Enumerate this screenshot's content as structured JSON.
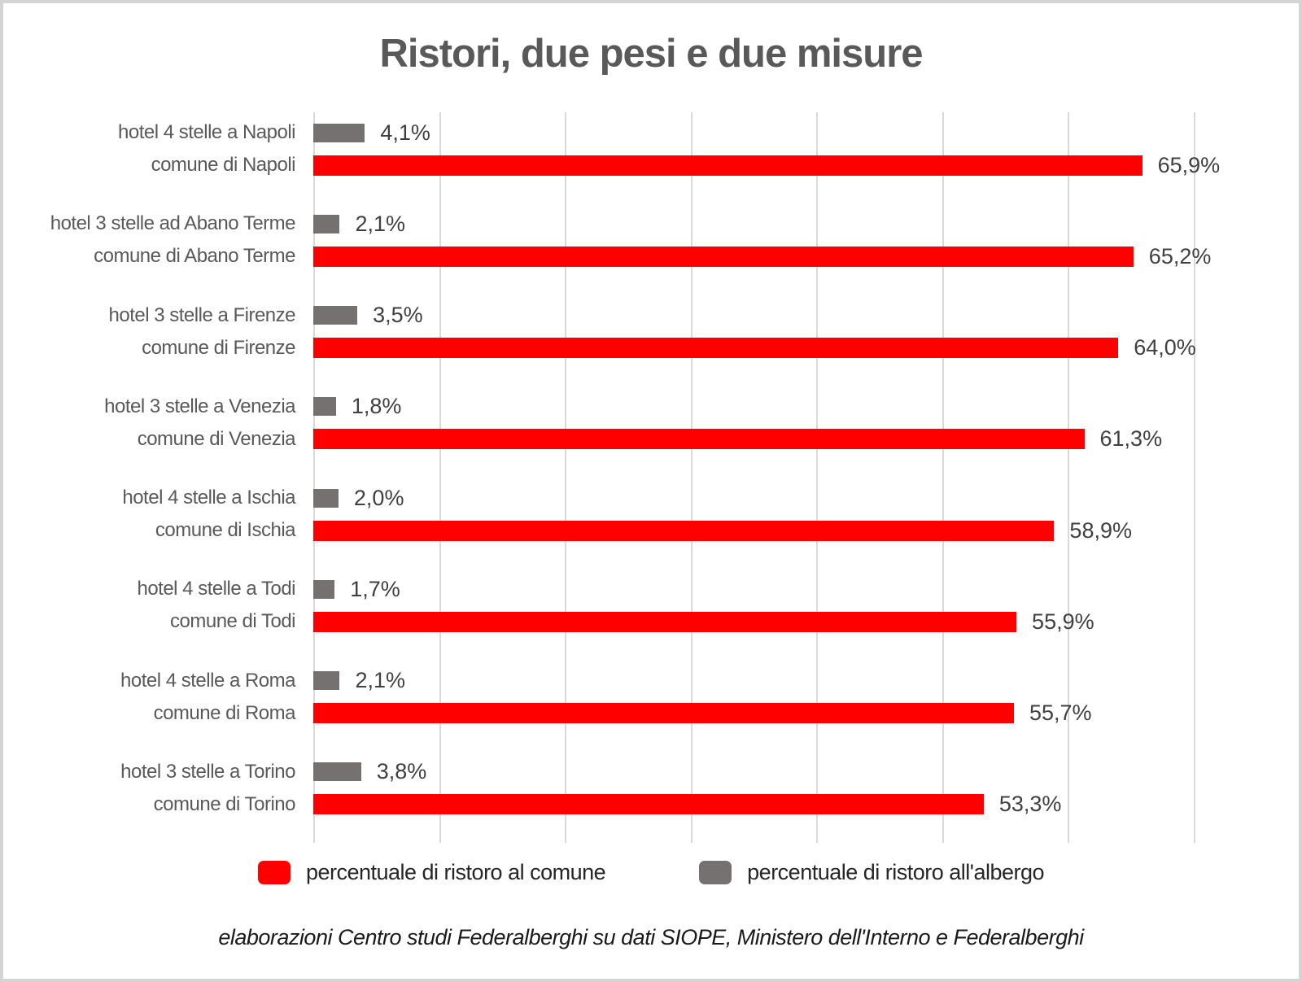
{
  "chart_data": {
    "type": "bar",
    "orientation": "horizontal",
    "title": "Ristori, due pesi e due misure",
    "xlim": [
      0,
      70
    ],
    "gridline_interval_pct": 10,
    "grid": true,
    "legend_position": "bottom",
    "series_meta": [
      {
        "name": "percentuale di ristoro al comune",
        "color": "#ff0000"
      },
      {
        "name": "percentuale di ristoro all'albergo",
        "color": "#767171"
      }
    ],
    "groups": [
      {
        "hotel_label": "hotel 4 stelle a Napoli",
        "hotel_value": 4.1,
        "hotel_value_label": "4,1%",
        "comune_label": "comune di Napoli",
        "comune_value": 65.9,
        "comune_value_label": "65,9%"
      },
      {
        "hotel_label": "hotel 3 stelle ad Abano Terme",
        "hotel_value": 2.1,
        "hotel_value_label": "2,1%",
        "comune_label": "comune di Abano Terme",
        "comune_value": 65.2,
        "comune_value_label": "65,2%"
      },
      {
        "hotel_label": "hotel 3 stelle a Firenze",
        "hotel_value": 3.5,
        "hotel_value_label": "3,5%",
        "comune_label": "comune di Firenze",
        "comune_value": 64.0,
        "comune_value_label": "64,0%"
      },
      {
        "hotel_label": "hotel 3 stelle a Venezia",
        "hotel_value": 1.8,
        "hotel_value_label": "1,8%",
        "comune_label": "comune di Venezia",
        "comune_value": 61.3,
        "comune_value_label": "61,3%"
      },
      {
        "hotel_label": "hotel 4 stelle a Ischia",
        "hotel_value": 2.0,
        "hotel_value_label": "2,0%",
        "comune_label": "comune di Ischia",
        "comune_value": 58.9,
        "comune_value_label": "58,9%"
      },
      {
        "hotel_label": "hotel 4 stelle a Todi",
        "hotel_value": 1.7,
        "hotel_value_label": "1,7%",
        "comune_label": "comune di Todi",
        "comune_value": 55.9,
        "comune_value_label": "55,9%"
      },
      {
        "hotel_label": "hotel 4 stelle a Roma",
        "hotel_value": 2.1,
        "hotel_value_label": "2,1%",
        "comune_label": "comune di Roma",
        "comune_value": 55.7,
        "comune_value_label": "55,7%"
      },
      {
        "hotel_label": "hotel 3 stelle a Torino",
        "hotel_value": 3.8,
        "hotel_value_label": "3,8%",
        "comune_label": "comune di Torino",
        "comune_value": 53.3,
        "comune_value_label": "53,3%"
      }
    ],
    "footer": "elaborazioni Centro studi Federalberghi su dati SIOPE, Ministero dell'Interno e Federalberghi"
  },
  "colors": {
    "bar_red": "#ff0000",
    "bar_gray": "#767171",
    "title_text": "#595959",
    "category_text": "#595959",
    "value_text": "#404040",
    "gridline": "#d9d9d9",
    "frame_border": "#d4d4d4"
  }
}
